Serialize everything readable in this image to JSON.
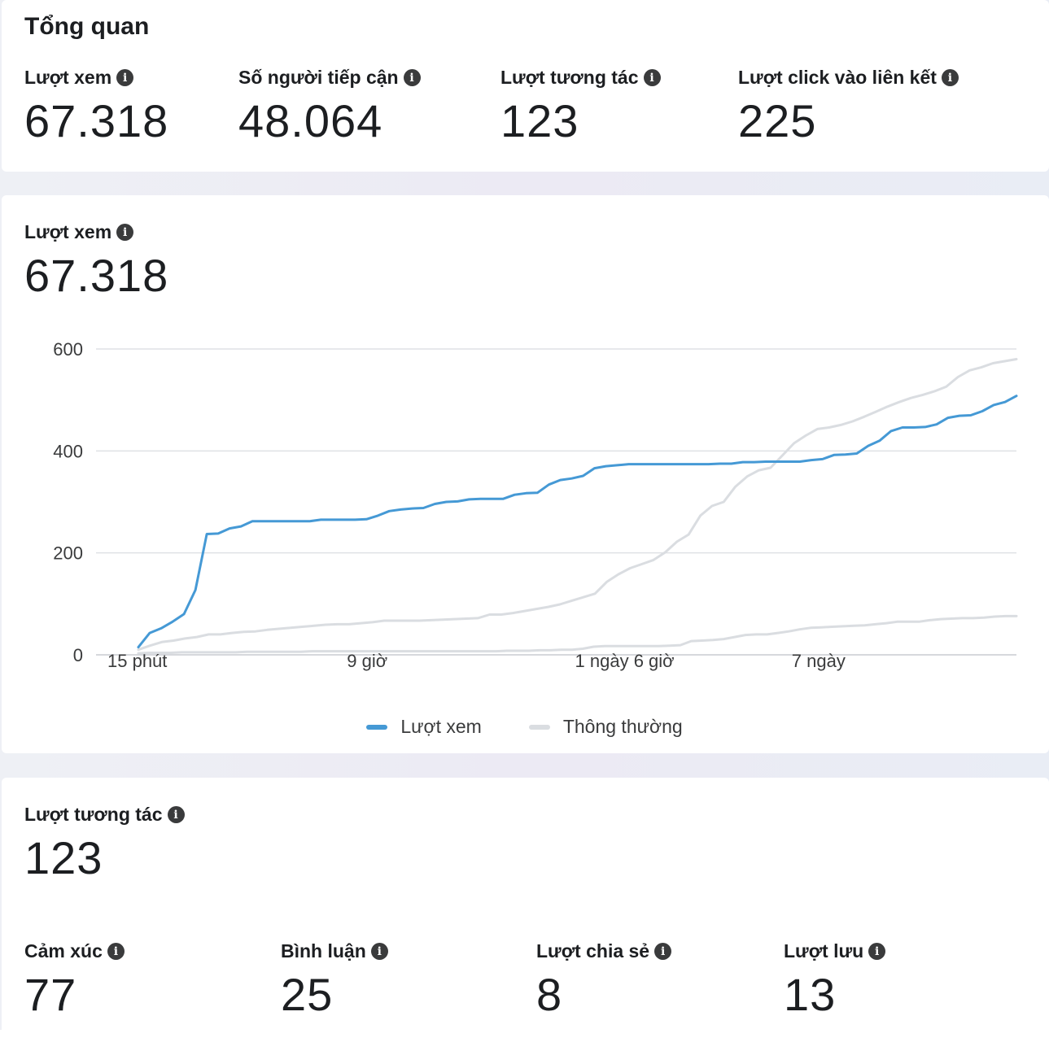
{
  "overview": {
    "title": "Tổng quan",
    "metrics": [
      {
        "label": "Lượt xem",
        "value": "67.318"
      },
      {
        "label": "Số người tiếp cận",
        "value": "48.064"
      },
      {
        "label": "Lượt tương tác",
        "value": "123"
      },
      {
        "label": "Lượt click vào liên kết",
        "value": "225"
      }
    ]
  },
  "views": {
    "label": "Lượt xem",
    "value": "67.318"
  },
  "chart_data": {
    "type": "line",
    "title": "",
    "xlabel": "",
    "ylabel": "",
    "ylim": [
      0,
      600
    ],
    "yticks": [
      0,
      200,
      400,
      600
    ],
    "xticks": [
      {
        "at": 0,
        "label": "15 phút"
      },
      {
        "at": 21,
        "label": "9 giờ"
      },
      {
        "at": 41,
        "label": "1 ngày 6 giờ"
      },
      {
        "at": 60,
        "label": "7 ngày"
      }
    ],
    "grid": true,
    "legend": "bottom",
    "series": [
      {
        "name": "Lượt xem",
        "color": "#4599d5",
        "values": [
          15,
          43,
          52,
          65,
          80,
          127,
          237,
          238,
          248,
          252,
          262,
          262,
          262,
          262,
          262,
          262,
          265,
          265,
          265,
          265,
          266,
          273,
          282,
          285,
          287,
          288,
          296,
          300,
          301,
          305,
          306,
          306,
          306,
          314,
          317,
          318,
          334,
          343,
          346,
          351,
          366,
          370,
          372,
          374,
          374,
          374,
          374,
          374,
          374,
          374,
          374,
          375,
          375,
          378,
          378,
          379,
          379,
          379,
          379,
          382,
          384,
          392,
          393,
          395,
          410,
          420,
          439,
          446,
          446,
          447,
          452,
          465,
          469,
          470,
          478,
          490,
          496,
          508
        ]
      },
      {
        "name": "Thông thường",
        "color": "#dadde1",
        "values": [
          10,
          18,
          25,
          28,
          32,
          35,
          40,
          40,
          43,
          45,
          46,
          49,
          51,
          53,
          55,
          57,
          59,
          60,
          60,
          62,
          64,
          67,
          67,
          67,
          67,
          68,
          69,
          70,
          71,
          72,
          79,
          79,
          82,
          86,
          90,
          94,
          99,
          106,
          113,
          120,
          143,
          158,
          170,
          178,
          186,
          201,
          222,
          236,
          273,
          292,
          300,
          330,
          350,
          362,
          367,
          391,
          415,
          430,
          443,
          446,
          451,
          458,
          467,
          477,
          487,
          496,
          504,
          510,
          517,
          526,
          545,
          558,
          564,
          572,
          576,
          580
        ]
      },
      {
        "name": "",
        "color": "#dadde1",
        "values": [
          3,
          4,
          4,
          4,
          5,
          5,
          5,
          5,
          5,
          5,
          6,
          6,
          6,
          6,
          6,
          6,
          7,
          7,
          7,
          7,
          7,
          7,
          7,
          7,
          7,
          7,
          7,
          7,
          7,
          7,
          7,
          7,
          7,
          7,
          8,
          8,
          8,
          9,
          9,
          10,
          10,
          12,
          16,
          17,
          17,
          17,
          17,
          17,
          17,
          18,
          19,
          27,
          28,
          29,
          31,
          35,
          39,
          40,
          40,
          43,
          46,
          50,
          53,
          54,
          55,
          56,
          57,
          58,
          60,
          62,
          65,
          65,
          65,
          68,
          70,
          71,
          72,
          72,
          73,
          75,
          76,
          76
        ]
      }
    ]
  },
  "legend": {
    "items": [
      {
        "label": "Lượt xem",
        "color": "#4599d5"
      },
      {
        "label": "Thông thường",
        "color": "#dadde1"
      }
    ]
  },
  "interactions": {
    "label": "Lượt tương tác",
    "value": "123",
    "metrics": [
      {
        "label": "Cảm xúc",
        "value": "77"
      },
      {
        "label": "Bình luận",
        "value": "25"
      },
      {
        "label": "Lượt chia sẻ",
        "value": "8"
      },
      {
        "label": "Lượt lưu",
        "value": "13"
      }
    ]
  },
  "icons": {
    "info": "info-icon"
  }
}
